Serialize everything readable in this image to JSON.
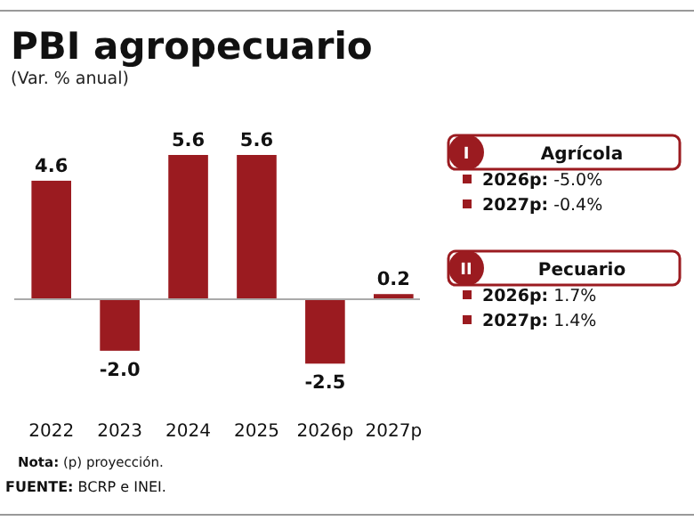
{
  "chart_data": [
    {
      "type": "bar",
      "title": "PBI agropecuario",
      "subtitle": "(Var. % anual)",
      "categories": [
        "2022",
        "2023",
        "2024",
        "2025",
        "2026p",
        "2027p"
      ],
      "values": [
        4.6,
        -2.0,
        5.6,
        5.6,
        -2.5,
        0.2
      ],
      "value_labels": [
        "4.6",
        "-2.0",
        "5.6",
        "5.6",
        "-2.5",
        "0.2"
      ],
      "color": "#9b1b20",
      "annotations": [
        "Nota: (p) proyección.",
        "FUENTE: BCRP e INEI."
      ]
    },
    {
      "type": "other",
      "annotations": [
        "I",
        "Agrícola",
        "2026p: -5.0%",
        "2027p: -0.4%",
        "II",
        "Pecuario",
        "2026p: 1.7%",
        "2027p: 1.4%"
      ]
    }
  ]
}
